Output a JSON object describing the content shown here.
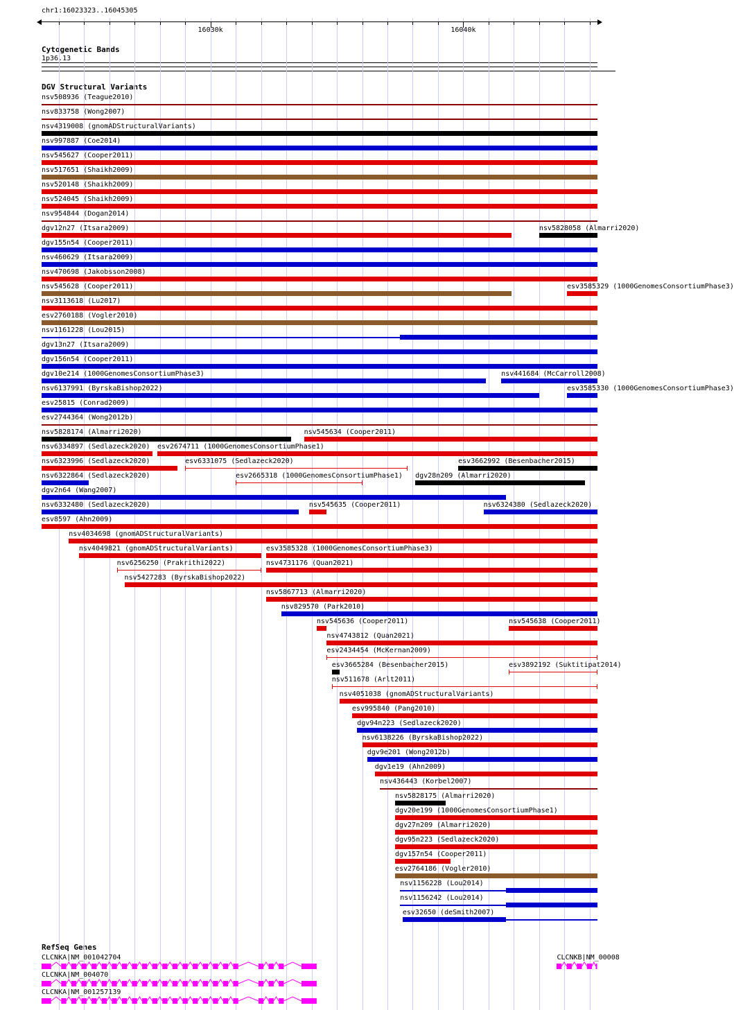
{
  "chart_data": {
    "type": "genomic-interval-tracks",
    "region": "chr1:16023323..16045305",
    "axis": {
      "min": 16023323,
      "max": 16045305,
      "unit": "bp",
      "minor_tick_bp": 1000,
      "grid": true,
      "major_ticks": [
        {
          "bp": 16030000,
          "label": "16030k"
        },
        {
          "bp": 16040000,
          "label": "16040k"
        }
      ]
    },
    "sections": {
      "cytoband_title": "Cytogenetic Bands",
      "variants_title": "DGV Structural Variants",
      "genes_title": "RefSeq Genes"
    },
    "cytoband": {
      "name": "1p36.13"
    },
    "palette": {
      "red": "#e00000",
      "blue": "#0000cc",
      "brown": "#8b5a2b",
      "black": "#000000",
      "darkred": "#8b0000",
      "magenta": "#ff00ff",
      "grid": "#ccccff"
    },
    "variant_rows": [
      [
        {
          "label": "nsv508936 (Teague2010)",
          "color": "darkred",
          "style": "line",
          "start": 16023323,
          "end": 16045305
        }
      ],
      [
        {
          "label": "nsv833758 (Wong2007)",
          "color": "darkred",
          "style": "line",
          "start": 16023323,
          "end": 16045305
        }
      ],
      [
        {
          "label": "nsv4319008 (gnomADStructuralVariants)",
          "color": "black",
          "style": "box",
          "start": 16023323,
          "end": 16045305
        }
      ],
      [
        {
          "label": "nsv997887 (Coe2014)",
          "color": "blue",
          "style": "box",
          "start": 16023323,
          "end": 16045305
        }
      ],
      [
        {
          "label": "nsv545627 (Cooper2011)",
          "color": "red",
          "style": "box",
          "start": 16023323,
          "end": 16045305
        }
      ],
      [
        {
          "label": "nsv517651 (Shaikh2009)",
          "color": "brown",
          "style": "box",
          "start": 16023323,
          "end": 16045305
        }
      ],
      [
        {
          "label": "nsv520148 (Shaikh2009)",
          "color": "red",
          "style": "box",
          "start": 16023323,
          "end": 16045305
        }
      ],
      [
        {
          "label": "nsv524045 (Shaikh2009)",
          "color": "red",
          "style": "box",
          "start": 16023323,
          "end": 16045305
        }
      ],
      [
        {
          "label": "nsv954844 (Dogan2014)",
          "color": "darkred",
          "style": "line",
          "start": 16023323,
          "end": 16045305
        }
      ],
      [
        {
          "label": "dgv12n27 (Itsara2009)",
          "color": "red",
          "style": "box",
          "start": 16023323,
          "end": 16041900
        },
        {
          "label": "nsv5828058 (Almarri2020)",
          "color": "black",
          "style": "box",
          "start": 16043000,
          "end": 16045305
        }
      ],
      [
        {
          "label": "dgv155n54 (Cooper2011)",
          "color": "blue",
          "style": "box",
          "start": 16023323,
          "end": 16045305
        }
      ],
      [
        {
          "label": "nsv460629 (Itsara2009)",
          "color": "blue",
          "style": "box",
          "start": 16023323,
          "end": 16045305
        }
      ],
      [
        {
          "label": "nsv470698 (Jakobsson2008)",
          "color": "red",
          "style": "box",
          "start": 16023323,
          "end": 16045305
        }
      ],
      [
        {
          "label": "nsv545628 (Cooper2011)",
          "color": "brown",
          "style": "box",
          "start": 16023323,
          "end": 16041900
        },
        {
          "label": "esv3585329 (1000GenomesConsortiumPhase3)",
          "color": "red",
          "style": "box",
          "start": 16044100,
          "end": 16045305
        }
      ],
      [
        {
          "label": "nsv3113618 (Lu2017)",
          "color": "red",
          "style": "box",
          "start": 16023323,
          "end": 16045305
        }
      ],
      [
        {
          "label": "esv2760188 (Vogler2010)",
          "color": "brown",
          "style": "box",
          "start": 16023323,
          "end": 16045305
        }
      ],
      [
        {
          "label": "nsv1161228 (Lou2015)",
          "color": "blue",
          "style": "innerouter",
          "start": 16023323,
          "end": 16045305,
          "inner_start": 16037500,
          "inner_end": 16045305
        }
      ],
      [
        {
          "label": "dgv13n27 (Itsara2009)",
          "color": "blue",
          "style": "box",
          "start": 16023323,
          "end": 16045305
        }
      ],
      [
        {
          "label": "dgv156n54 (Cooper2011)",
          "color": "blue",
          "style": "box",
          "start": 16023323,
          "end": 16045305
        }
      ],
      [
        {
          "label": "dgv10e214 (1000GenomesConsortiumPhase3)",
          "color": "blue",
          "style": "box",
          "start": 16023323,
          "end": 16040900
        },
        {
          "label": "nsv441684 (McCarroll2008)",
          "color": "blue",
          "style": "box",
          "start": 16041500,
          "end": 16045305
        }
      ],
      [
        {
          "label": "nsv6137991 (ByrskaBishop2022)",
          "color": "blue",
          "style": "box",
          "start": 16023323,
          "end": 16043000
        },
        {
          "label": "esv3585330 (1000GenomesConsortiumPhase3)",
          "color": "blue",
          "style": "box",
          "start": 16044100,
          "end": 16045305
        }
      ],
      [
        {
          "label": "esv25815 (Conrad2009)",
          "color": "blue",
          "style": "box",
          "start": 16023323,
          "end": 16045305
        }
      ],
      [
        {
          "label": "esv2744364 (Wong2012b)",
          "color": "darkred",
          "style": "line",
          "start": 16023323,
          "end": 16045305
        }
      ],
      [
        {
          "label": "nsv5828174 (Almarri2020)",
          "color": "black",
          "style": "box",
          "start": 16023323,
          "end": 16033200
        },
        {
          "label": "nsv545634 (Cooper2011)",
          "color": "red",
          "style": "box",
          "start": 16033700,
          "end": 16045305
        }
      ],
      [
        {
          "label": "nsv6334897 (Sedlazeck2020)",
          "color": "red",
          "style": "box",
          "start": 16023323,
          "end": 16027700
        },
        {
          "label": "esv2674711 (1000GenomesConsortiumPhase1)",
          "color": "red",
          "style": "box",
          "start": 16027900,
          "end": 16045305
        }
      ],
      [
        {
          "label": "nsv6323996 (Sedlazeck2020)",
          "color": "red",
          "style": "box",
          "start": 16023323,
          "end": 16028700
        },
        {
          "label": "esv6331075 (Sedlazeck2020)",
          "color": "red",
          "style": "capped",
          "start": 16029000,
          "end": 16037800
        },
        {
          "label": "esv3662992 (Besenbacher2015)",
          "color": "black",
          "style": "box",
          "start": 16039800,
          "end": 16045305
        }
      ],
      [
        {
          "label": "nsv6322864 (Sedlazeck2020)",
          "color": "blue",
          "style": "box",
          "start": 16023323,
          "end": 16025200
        },
        {
          "label": "esv2665318 (1000GenomesConsortiumPhase1)",
          "color": "red",
          "style": "capped",
          "start": 16031000,
          "end": 16036000
        },
        {
          "label": "dgv28n209 (Almarri2020)",
          "color": "black",
          "style": "box",
          "start": 16038100,
          "end": 16044800
        }
      ],
      [
        {
          "label": "dgv2n64 (Wang2007)",
          "color": "blue",
          "style": "box",
          "start": 16023323,
          "end": 16041700
        }
      ],
      [
        {
          "label": "nsv6332480 (Sedlazeck2020)",
          "color": "blue",
          "style": "box",
          "start": 16023323,
          "end": 16033500
        },
        {
          "label": "nsv545635 (Cooper2011)",
          "color": "red",
          "style": "box",
          "start": 16033900,
          "end": 16034600
        },
        {
          "label": "nsv6324380 (Sedlazeck2020)",
          "color": "blue",
          "style": "box",
          "start": 16040800,
          "end": 16045305
        }
      ],
      [
        {
          "label": "esv8597 (Ahn2009)",
          "color": "red",
          "style": "box",
          "start": 16023323,
          "end": 16045305
        }
      ],
      [
        {
          "label": "nsv4034698 (gnomADStructuralVariants)",
          "color": "red",
          "style": "box",
          "start": 16024400,
          "end": 16045305
        }
      ],
      [
        {
          "label": "nsv4049821 (gnomADStructuralVariants)",
          "color": "red",
          "style": "box",
          "start": 16024800,
          "end": 16032000
        },
        {
          "label": "esv3585328 (1000GenomesConsortiumPhase3)",
          "color": "red",
          "style": "box",
          "start": 16032200,
          "end": 16045305
        }
      ],
      [
        {
          "label": "nsv6256250 (Prakrithi2022)",
          "color": "red",
          "style": "capped",
          "start": 16026300,
          "end": 16032000
        },
        {
          "label": "nsv4731176 (Quan2021)",
          "color": "red",
          "style": "box",
          "start": 16032200,
          "end": 16045305
        }
      ],
      [
        {
          "label": "nsv5427283 (ByrskaBishop2022)",
          "color": "red",
          "style": "box",
          "start": 16026600,
          "end": 16045305
        }
      ],
      [
        {
          "label": "nsv5867713 (Almarri2020)",
          "color": "red",
          "style": "box",
          "start": 16032200,
          "end": 16045305
        }
      ],
      [
        {
          "label": "nsv829570 (Park2010)",
          "color": "blue",
          "style": "box",
          "start": 16032800,
          "end": 16045305
        }
      ],
      [
        {
          "label": "nsv545636 (Cooper2011)",
          "color": "red",
          "style": "box",
          "start": 16034200,
          "end": 16034600
        },
        {
          "label": "nsv545638 (Cooper2011)",
          "color": "red",
          "style": "box",
          "start": 16041800,
          "end": 16045305
        }
      ],
      [
        {
          "label": "nsv4743812 (Quan2021)",
          "color": "red",
          "style": "box",
          "start": 16034600,
          "end": 16045305
        }
      ],
      [
        {
          "label": "esv2434454 (McKernan2009)",
          "color": "red",
          "style": "capped",
          "start": 16034600,
          "end": 16045305
        }
      ],
      [
        {
          "label": "esv3665284 (Besenbacher2015)",
          "color": "black",
          "style": "box",
          "start": 16034800,
          "end": 16035100
        },
        {
          "label": "esv3892192 (Suktitipat2014)",
          "color": "red",
          "style": "capped",
          "start": 16041800,
          "end": 16045305
        }
      ],
      [
        {
          "label": "nsv511678 (Arlt2011)",
          "color": "red",
          "style": "capped",
          "start": 16034800,
          "end": 16045305
        }
      ],
      [
        {
          "label": "nsv4051038 (gnomADStructuralVariants)",
          "color": "red",
          "style": "box",
          "start": 16035100,
          "end": 16045305
        }
      ],
      [
        {
          "label": "esv995840 (Pang2010)",
          "color": "red",
          "style": "box",
          "start": 16035600,
          "end": 16045305
        }
      ],
      [
        {
          "label": "dgv94n223 (Sedlazeck2020)",
          "color": "blue",
          "style": "box",
          "start": 16035800,
          "end": 16045305
        }
      ],
      [
        {
          "label": "nsv6138226 (ByrskaBishop2022)",
          "color": "red",
          "style": "box",
          "start": 16036000,
          "end": 16045305
        }
      ],
      [
        {
          "label": "dgv9e201 (Wong2012b)",
          "color": "blue",
          "style": "box",
          "start": 16036200,
          "end": 16045305
        }
      ],
      [
        {
          "label": "dgv1e19 (Ahn2009)",
          "color": "red",
          "style": "box",
          "start": 16036500,
          "end": 16045305
        }
      ],
      [
        {
          "label": "nsv436443 (Korbel2007)",
          "color": "darkred",
          "style": "line",
          "start": 16036700,
          "end": 16045305
        }
      ],
      [
        {
          "label": "nsv5828175 (Almarri2020)",
          "color": "black",
          "style": "box",
          "start": 16037300,
          "end": 16039300
        }
      ],
      [
        {
          "label": "dgv20e199 (1000GenomesConsortiumPhase1)",
          "color": "red",
          "style": "box",
          "start": 16037300,
          "end": 16045305
        }
      ],
      [
        {
          "label": "dgv27n209 (Almarri2020)",
          "color": "red",
          "style": "box",
          "start": 16037300,
          "end": 16045305
        }
      ],
      [
        {
          "label": "dgv95n223 (Sedlazeck2020)",
          "color": "red",
          "style": "box",
          "start": 16037300,
          "end": 16045305
        }
      ],
      [
        {
          "label": "dgv157n54 (Cooper2011)",
          "color": "red",
          "style": "box",
          "start": 16037300,
          "end": 16039500
        }
      ],
      [
        {
          "label": "esv2764186 (Vogler2010)",
          "color": "brown",
          "style": "box",
          "start": 16037300,
          "end": 16045305
        }
      ],
      [
        {
          "label": "nsv1156228 (Lou2014)",
          "color": "blue",
          "style": "innerouter",
          "start": 16037500,
          "end": 16045305,
          "inner_start": 16041700,
          "inner_end": 16045305
        }
      ],
      [
        {
          "label": "nsv1156242 (Lou2014)",
          "color": "blue",
          "style": "innerouter",
          "start": 16037500,
          "end": 16045305,
          "inner_start": 16041700,
          "inner_end": 16045305
        }
      ],
      [
        {
          "label": "esv32650 (deSmith2007)",
          "color": "blue",
          "style": "innerouter",
          "start": 16037600,
          "end": 16045305,
          "inner_start": 16037600,
          "inner_end": 16041700
        }
      ]
    ],
    "exon_sets": {
      "CLCNKA": [
        [
          16023323,
          16023700
        ],
        [
          16024100,
          16024300
        ],
        [
          16024500,
          16024700
        ],
        [
          16024900,
          16025100
        ],
        [
          16025300,
          16025500
        ],
        [
          16025700,
          16025900
        ],
        [
          16026100,
          16026300
        ],
        [
          16026500,
          16026700
        ],
        [
          16026900,
          16027100
        ],
        [
          16027300,
          16027500
        ],
        [
          16027700,
          16027900
        ],
        [
          16028100,
          16028300
        ],
        [
          16028500,
          16028700
        ],
        [
          16028900,
          16029100
        ],
        [
          16029300,
          16029500
        ],
        [
          16029700,
          16029900
        ],
        [
          16030100,
          16030300
        ],
        [
          16030500,
          16030700
        ],
        [
          16030900,
          16031100
        ],
        [
          16031900,
          16032100
        ],
        [
          16032300,
          16032500
        ],
        [
          16032700,
          16032900
        ],
        [
          16033600,
          16034200
        ]
      ],
      "CLCNKB": [
        [
          16043700,
          16043900
        ],
        [
          16044100,
          16044300
        ],
        [
          16044500,
          16044700
        ],
        [
          16044900,
          16045100
        ],
        [
          16045250,
          16045305
        ]
      ]
    },
    "gene_rows": [
      [
        {
          "label": "CLCNKA|NM_001042704",
          "start": 16023323,
          "end": 16034200,
          "exons_set": "CLCNKA"
        },
        {
          "label": "CLCNKB|NM_00008",
          "start": 16043700,
          "end": 16045305,
          "exons_set": "CLCNKB"
        }
      ],
      [
        {
          "label": "CLCNKA|NM_004070",
          "start": 16023323,
          "end": 16034200,
          "exons_set": "CLCNKA"
        }
      ],
      [
        {
          "label": "CLCNKA|NM_001257139",
          "start": 16023323,
          "end": 16034200,
          "exons_set": "CLCNKA"
        }
      ]
    ]
  }
}
